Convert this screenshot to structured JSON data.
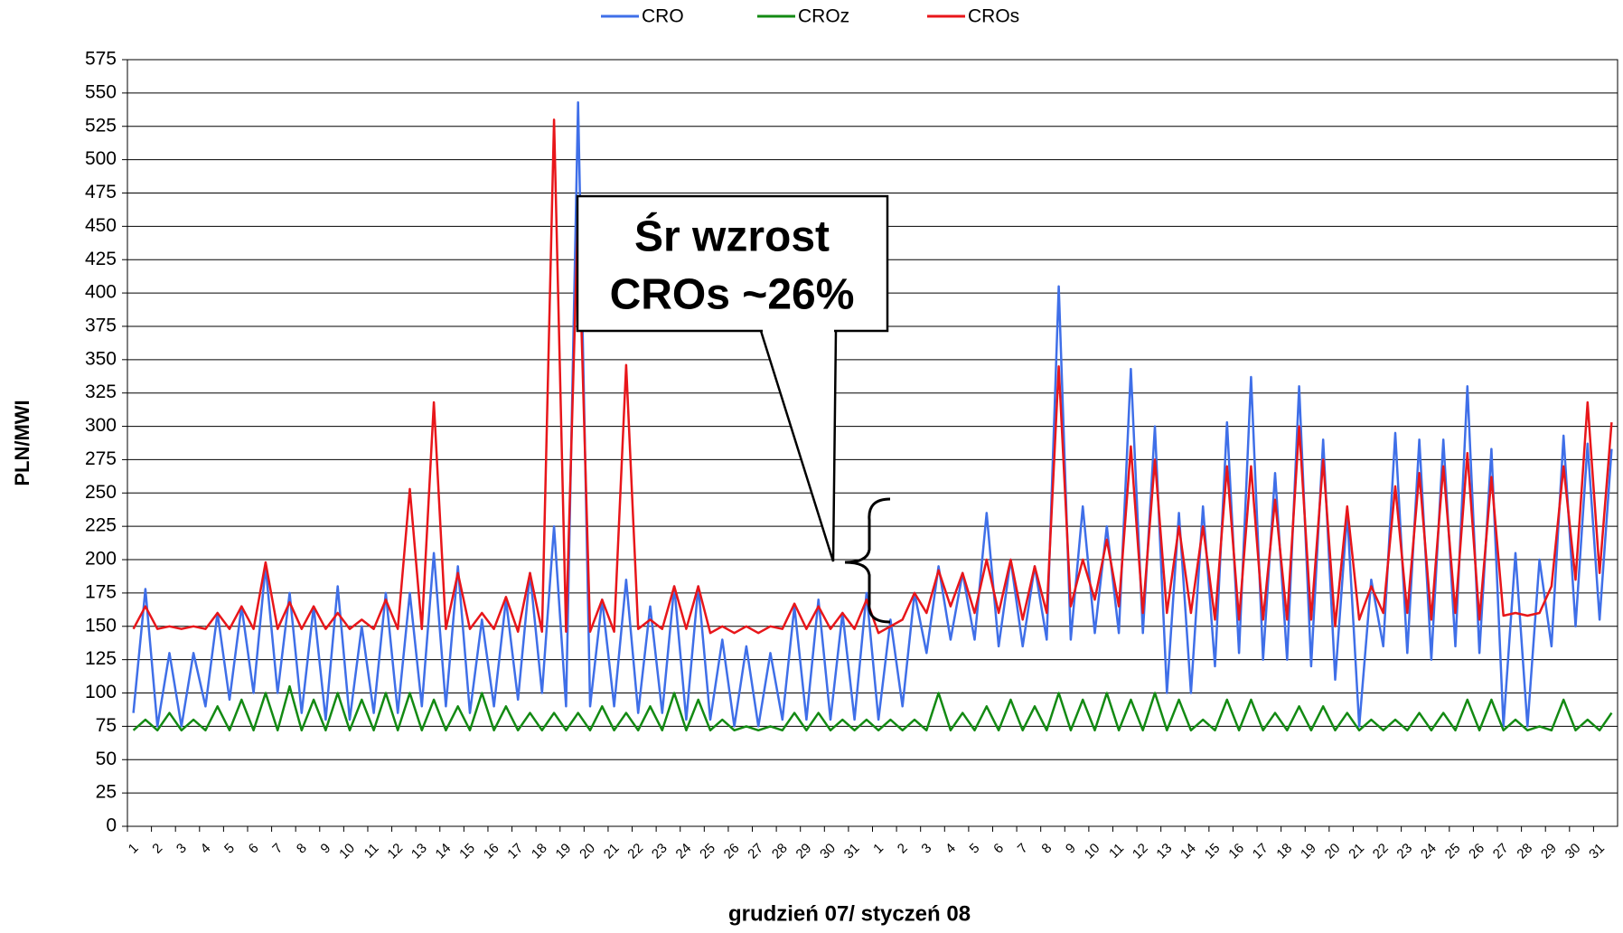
{
  "chart_data": {
    "type": "line",
    "xlabel": "grudzień 07/ styczeń 08",
    "ylabel": "PLN/MWI",
    "annotation": [
      "Śr wzrost",
      "CROs ~26%"
    ],
    "categories": [
      "1",
      null,
      "2",
      null,
      "3",
      null,
      "4",
      null,
      "5",
      null,
      "6",
      null,
      "7",
      null,
      "8",
      null,
      "9",
      null,
      "10",
      null,
      "11",
      null,
      "12",
      null,
      "13",
      null,
      "14",
      null,
      "15",
      null,
      "16",
      null,
      "17",
      null,
      "18",
      null,
      "19",
      null,
      "20",
      null,
      "21",
      null,
      "22",
      null,
      "23",
      null,
      "24",
      null,
      "25",
      null,
      "26",
      null,
      "27",
      null,
      "28",
      null,
      "29",
      null,
      "30",
      null,
      "31",
      null,
      "1",
      null,
      "2",
      null,
      "3",
      null,
      "4",
      null,
      "5",
      null,
      "6",
      null,
      "7",
      null,
      "8",
      null,
      "9",
      null,
      "10",
      null,
      "11",
      null,
      "12",
      null,
      "13",
      null,
      "14",
      null,
      "15",
      null,
      "16",
      null,
      "17",
      null,
      "18",
      null,
      "19",
      null,
      "20",
      null,
      "21",
      null,
      "22",
      null,
      "23",
      null,
      "24",
      null,
      "25",
      null,
      "26",
      null,
      "27",
      null,
      "28",
      null,
      "29",
      null,
      "30",
      null,
      "31",
      null
    ],
    "series": [
      {
        "name": "CRO",
        "color": "#3f6fe8",
        "values": [
          85,
          178,
          75,
          130,
          75,
          130,
          90,
          160,
          95,
          165,
          100,
          195,
          100,
          175,
          85,
          165,
          80,
          180,
          80,
          150,
          85,
          175,
          85,
          175,
          90,
          205,
          90,
          195,
          85,
          155,
          90,
          170,
          95,
          190,
          100,
          225,
          90,
          543,
          90,
          170,
          90,
          185,
          85,
          165,
          85,
          180,
          80,
          180,
          80,
          140,
          75,
          135,
          75,
          130,
          80,
          165,
          80,
          170,
          80,
          160,
          80,
          175,
          80,
          155,
          90,
          175,
          130,
          195,
          140,
          190,
          140,
          235,
          135,
          200,
          135,
          195,
          140,
          405,
          140,
          240,
          145,
          225,
          145,
          343,
          145,
          300,
          100,
          235,
          100,
          240,
          120,
          303,
          130,
          337,
          125,
          265,
          125,
          330,
          120,
          290,
          110,
          235,
          75,
          185,
          135,
          295,
          130,
          290,
          125,
          290,
          135,
          330,
          130,
          283,
          75,
          205,
          75,
          200,
          135,
          293,
          150,
          287,
          155,
          283
        ]
      },
      {
        "name": "CROz",
        "color": "#138a13",
        "values": [
          72,
          80,
          72,
          85,
          72,
          80,
          72,
          90,
          72,
          95,
          72,
          100,
          72,
          105,
          72,
          95,
          72,
          100,
          72,
          95,
          72,
          100,
          72,
          100,
          72,
          95,
          72,
          90,
          72,
          100,
          72,
          90,
          72,
          85,
          72,
          85,
          72,
          85,
          72,
          90,
          72,
          85,
          72,
          90,
          72,
          100,
          72,
          95,
          72,
          80,
          72,
          75,
          72,
          75,
          72,
          85,
          72,
          85,
          72,
          80,
          72,
          80,
          72,
          80,
          72,
          80,
          72,
          100,
          72,
          85,
          72,
          90,
          72,
          95,
          72,
          90,
          72,
          100,
          72,
          95,
          72,
          100,
          72,
          95,
          72,
          100,
          72,
          95,
          72,
          80,
          72,
          95,
          72,
          95,
          72,
          85,
          72,
          90,
          72,
          90,
          72,
          85,
          72,
          80,
          72,
          80,
          72,
          85,
          72,
          85,
          72,
          95,
          72,
          95,
          72,
          80,
          72,
          75,
          72,
          95,
          72,
          80,
          72,
          85
        ]
      },
      {
        "name": "CROs",
        "color": "#e8161a",
        "values": [
          148,
          165,
          148,
          150,
          148,
          150,
          148,
          160,
          148,
          165,
          148,
          198,
          148,
          168,
          148,
          165,
          148,
          160,
          148,
          155,
          148,
          170,
          148,
          253,
          148,
          318,
          148,
          190,
          148,
          160,
          148,
          172,
          146,
          190,
          146,
          530,
          146,
          463,
          146,
          170,
          146,
          346,
          148,
          155,
          148,
          180,
          148,
          180,
          145,
          150,
          145,
          150,
          145,
          150,
          148,
          167,
          148,
          165,
          148,
          160,
          148,
          170,
          145,
          150,
          155,
          175,
          160,
          192,
          165,
          190,
          160,
          200,
          160,
          200,
          155,
          195,
          160,
          345,
          165,
          200,
          170,
          215,
          165,
          285,
          160,
          275,
          160,
          225,
          160,
          225,
          155,
          270,
          155,
          270,
          155,
          245,
          155,
          300,
          155,
          275,
          150,
          240,
          155,
          180,
          160,
          255,
          160,
          265,
          155,
          270,
          160,
          280,
          155,
          262,
          158,
          160,
          158,
          160,
          180,
          270,
          185,
          318,
          190,
          303
        ]
      }
    ],
    "ylim": [
      0,
      575
    ],
    "yticks": [
      0,
      25,
      50,
      75,
      100,
      125,
      150,
      175,
      200,
      225,
      250,
      275,
      300,
      325,
      350,
      375,
      400,
      425,
      450,
      475,
      500,
      525,
      550,
      575
    ],
    "grid": true
  }
}
